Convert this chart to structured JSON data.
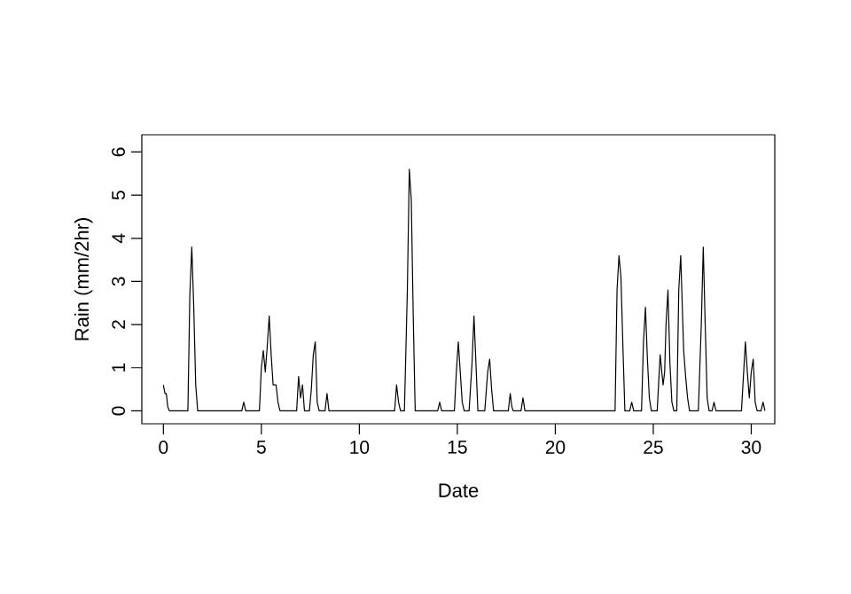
{
  "chart_data": {
    "type": "line",
    "xlabel": "Date",
    "ylabel": "Rain (mm/2hr)",
    "color": "#000000",
    "x": [
      0,
      0.08,
      0.15,
      0.22,
      0.3,
      1.25,
      1.35,
      1.45,
      1.55,
      1.65,
      1.75,
      4.0,
      4.1,
      4.2,
      4.9,
      5.0,
      5.1,
      5.2,
      5.3,
      5.4,
      5.5,
      5.6,
      5.75,
      5.85,
      5.95,
      6.8,
      6.9,
      7.0,
      7.1,
      7.2,
      7.45,
      7.55,
      7.65,
      7.75,
      7.85,
      7.95,
      8.25,
      8.35,
      8.45,
      11.8,
      11.9,
      12.0,
      12.1,
      12.3,
      12.45,
      12.55,
      12.65,
      12.75,
      12.85,
      14.0,
      14.1,
      14.2,
      14.85,
      14.95,
      15.05,
      15.15,
      15.25,
      15.35,
      15.6,
      15.75,
      15.85,
      15.95,
      16.05,
      16.4,
      16.55,
      16.65,
      16.75,
      16.85,
      17.6,
      17.7,
      17.78,
      17.85,
      18.25,
      18.35,
      18.45,
      23.05,
      23.15,
      23.25,
      23.35,
      23.45,
      23.55,
      23.8,
      23.9,
      24.0,
      24.4,
      24.5,
      24.6,
      24.7,
      24.8,
      24.9,
      25.2,
      25.35,
      25.5,
      25.58,
      25.65,
      25.75,
      25.85,
      25.95,
      26.05,
      26.2,
      26.3,
      26.4,
      26.55,
      26.65,
      26.75,
      26.85,
      27.3,
      27.45,
      27.55,
      27.65,
      27.75,
      27.85,
      28.0,
      28.1,
      28.2,
      29.5,
      29.6,
      29.7,
      29.8,
      29.9,
      30.0,
      30.1,
      30.2,
      30.3,
      30.5,
      30.6,
      30.7
    ],
    "values": [
      0.6,
      0.4,
      0.4,
      0.1,
      0,
      0,
      2.7,
      3.8,
      2.4,
      0.6,
      0,
      0,
      0.2,
      0,
      0,
      1.0,
      1.4,
      0.9,
      1.5,
      2.2,
      1.3,
      0.6,
      0.6,
      0.2,
      0,
      0,
      0.8,
      0.3,
      0.6,
      0,
      0,
      0.5,
      1.3,
      1.6,
      0.2,
      0,
      0,
      0.4,
      0,
      0,
      0.6,
      0.2,
      0,
      0,
      2.8,
      5.6,
      4.9,
      2.2,
      0,
      0,
      0.2,
      0,
      0,
      0.9,
      1.6,
      0.9,
      0.2,
      0,
      0,
      1.1,
      2.2,
      1.1,
      0,
      0,
      0.9,
      1.2,
      0.5,
      0,
      0,
      0.4,
      0.1,
      0,
      0,
      0.3,
      0,
      0,
      2.8,
      3.6,
      3.1,
      1.5,
      0,
      0,
      0.2,
      0,
      0,
      1.6,
      2.4,
      1.2,
      0.3,
      0,
      0,
      1.3,
      0.6,
      0.9,
      2.0,
      2.8,
      1.1,
      0.2,
      0,
      0,
      2.8,
      3.6,
      1.4,
      0.8,
      0.3,
      0,
      0,
      2.0,
      3.8,
      2.0,
      0.3,
      0,
      0,
      0.2,
      0,
      0,
      0.8,
      1.6,
      0.9,
      0.3,
      0.9,
      1.2,
      0.2,
      0,
      0,
      0.2,
      0
    ],
    "xlim": [
      -1.1,
      31.2
    ],
    "ylim": [
      -0.3,
      6.4
    ],
    "xticks": [
      0,
      5,
      10,
      15,
      20,
      25,
      30
    ],
    "yticks": [
      0,
      1,
      2,
      3,
      4,
      5,
      6
    ]
  }
}
